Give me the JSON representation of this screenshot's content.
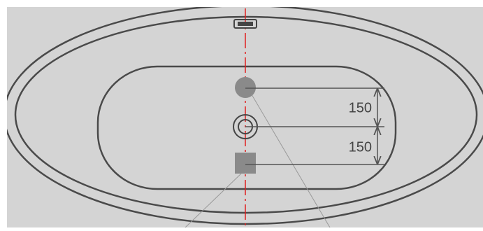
{
  "dimensions": [
    {
      "label": "150"
    },
    {
      "label": "150"
    }
  ]
}
